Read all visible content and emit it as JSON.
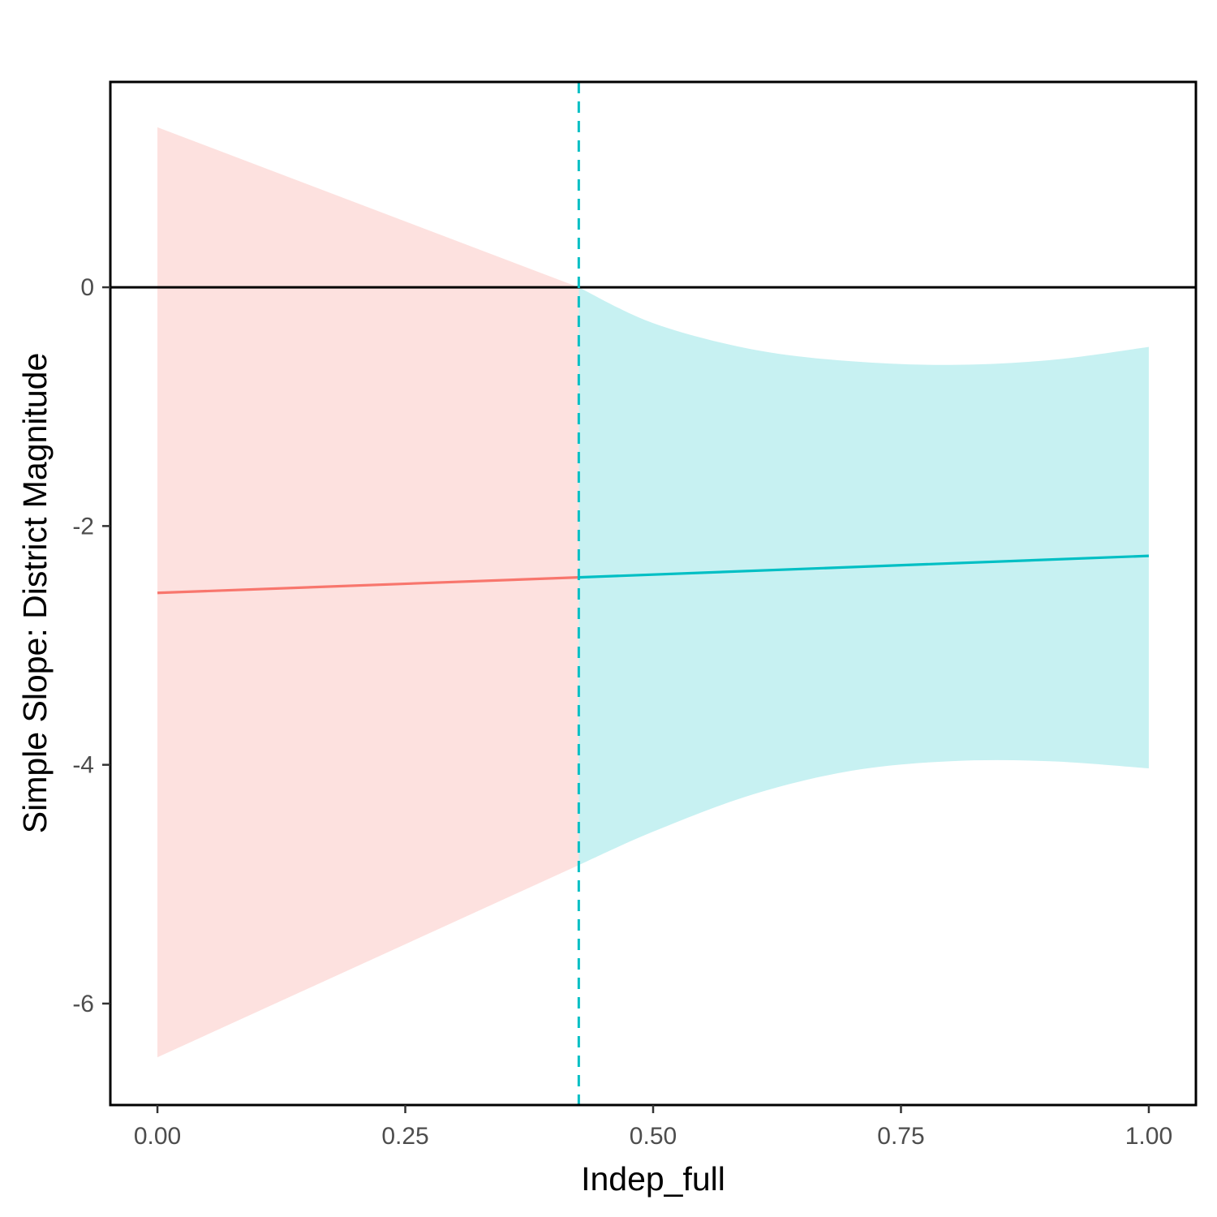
{
  "chart_data": {
    "type": "line",
    "title": "",
    "xlabel": "Indep_full",
    "ylabel": "Simple Slope: District Magnitude",
    "xlim": [
      -0.0475,
      1.0475
    ],
    "ylim": [
      -6.85,
      1.72
    ],
    "x_ticks": [
      {
        "value": 0.0,
        "label": "0.00"
      },
      {
        "value": 0.25,
        "label": "0.25"
      },
      {
        "value": 0.5,
        "label": "0.50"
      },
      {
        "value": 0.75,
        "label": "0.75"
      },
      {
        "value": 1.0,
        "label": "1.00"
      }
    ],
    "y_ticks": [
      {
        "value": 0,
        "label": "0"
      },
      {
        "value": -2,
        "label": "-2"
      },
      {
        "value": -4,
        "label": "-4"
      },
      {
        "value": -6,
        "label": "-6"
      }
    ],
    "zero_line": 0,
    "threshold_x": 0.425,
    "grid": false,
    "legend": "none",
    "series": [
      {
        "color": "#F8766D",
        "fill_color": "#F8766D",
        "x": [
          0.0,
          0.425
        ],
        "y": [
          -2.56,
          -2.43
        ],
        "band_x": [
          0.0,
          0.425
        ],
        "band_lower": [
          -6.45,
          -4.84
        ],
        "band_upper": [
          1.34,
          0.0
        ]
      },
      {
        "color": "#00BFC4",
        "fill_color": "#00BFC4",
        "x": [
          0.425,
          1.0
        ],
        "y": [
          -2.43,
          -2.25
        ],
        "band_x": [
          0.425,
          0.5,
          0.6,
          0.7,
          0.8,
          0.9,
          1.0
        ],
        "band_lower": [
          -4.84,
          -4.56,
          -4.25,
          -4.05,
          -3.97,
          -3.97,
          -4.03
        ],
        "band_upper": [
          0.0,
          -0.3,
          -0.52,
          -0.62,
          -0.65,
          -0.61,
          -0.5
        ]
      }
    ]
  }
}
